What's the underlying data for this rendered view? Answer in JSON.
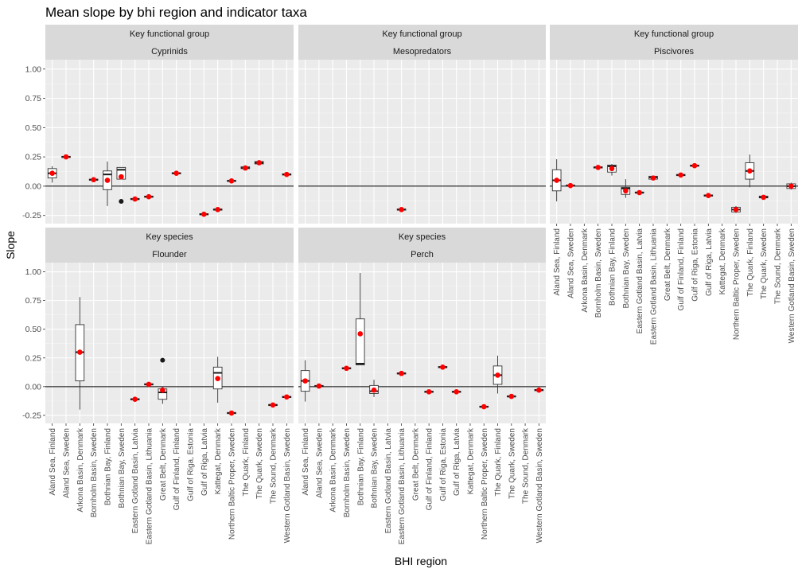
{
  "chart_data": {
    "type": "boxplot",
    "title": "Mean slope by bhi region and indicator taxa",
    "xlabel": "BHI region",
    "ylabel": "Slope",
    "ylim": [
      -0.32,
      1.08
    ],
    "yticks": [
      -0.25,
      0,
      0.25,
      0.5,
      0.75,
      1
    ],
    "ytick_labels": [
      "-0.25",
      "0.00",
      "0.25",
      "0.50",
      "0.75",
      "1.00"
    ],
    "hline": 0,
    "grid": true,
    "mean_marker_color": "#ff0000",
    "panel_background": "#ebebeb",
    "strip_background": "#d9d9d9",
    "categories": [
      "Aland Sea, Finland",
      "Aland Sea, Sweden",
      "Arkona Basin, Denmark",
      "Bornholm Basin, Sweden",
      "Bothnian Bay, Finland",
      "Bothnian Bay, Sweden",
      "Eastern Gotland Basin, Latvia",
      "Eastern Gotland Basin, Lithuania",
      "Great Belt, Denmark",
      "Gulf of Finland, Finland",
      "Gulf of Riga, Estonia",
      "Gulf of Riga, Latvia",
      "Kattegat, Denmark",
      "Northern Baltic Proper, Sweden",
      "The Quark, Finland",
      "The Quark, Sweden",
      "The Sound, Denmark",
      "Western Gotland Basin, Sweden"
    ],
    "panels": [
      {
        "group": "Key functional group",
        "taxon": "Cyprinids",
        "boxes": [
          {
            "cat": 0,
            "q1": 0.07,
            "med": 0.11,
            "q3": 0.15,
            "lo": 0.03,
            "hi": 0.17,
            "mean": 0.11
          },
          {
            "cat": 1,
            "q1": 0.245,
            "med": 0.25,
            "q3": 0.255,
            "lo": 0.245,
            "hi": 0.255,
            "mean": 0.25
          },
          {
            "cat": 3,
            "q1": 0.05,
            "med": 0.055,
            "q3": 0.06,
            "lo": 0.05,
            "hi": 0.06,
            "mean": 0.055
          },
          {
            "cat": 4,
            "q1": -0.03,
            "med": 0.1,
            "q3": 0.13,
            "lo": -0.17,
            "hi": 0.21,
            "mean": 0.05
          },
          {
            "cat": 5,
            "q1": 0.06,
            "med": 0.14,
            "q3": 0.16,
            "lo": 0.06,
            "hi": 0.16,
            "mean": 0.08,
            "outliers": [
              -0.13
            ]
          },
          {
            "cat": 6,
            "q1": -0.115,
            "med": -0.11,
            "q3": -0.105,
            "lo": -0.115,
            "hi": -0.105,
            "mean": -0.11
          },
          {
            "cat": 7,
            "q1": -0.095,
            "med": -0.09,
            "q3": -0.085,
            "lo": -0.095,
            "hi": -0.085,
            "mean": -0.09
          },
          {
            "cat": 9,
            "q1": 0.105,
            "med": 0.11,
            "q3": 0.115,
            "lo": 0.105,
            "hi": 0.115,
            "mean": 0.11
          },
          {
            "cat": 11,
            "q1": -0.245,
            "med": -0.24,
            "q3": -0.235,
            "lo": -0.245,
            "hi": -0.235,
            "mean": -0.24
          },
          {
            "cat": 12,
            "q1": -0.205,
            "med": -0.2,
            "q3": -0.195,
            "lo": -0.205,
            "hi": -0.195,
            "mean": -0.2
          },
          {
            "cat": 13,
            "q1": 0.04,
            "med": 0.045,
            "q3": 0.05,
            "lo": 0.04,
            "hi": 0.05,
            "mean": 0.045
          },
          {
            "cat": 14,
            "q1": 0.15,
            "med": 0.155,
            "q3": 0.165,
            "lo": 0.15,
            "hi": 0.165,
            "mean": 0.155
          },
          {
            "cat": 15,
            "q1": 0.19,
            "med": 0.2,
            "q3": 0.21,
            "lo": 0.18,
            "hi": 0.22,
            "mean": 0.2
          },
          {
            "cat": 17,
            "q1": 0.095,
            "med": 0.1,
            "q3": 0.105,
            "lo": 0.095,
            "hi": 0.105,
            "mean": 0.1
          }
        ]
      },
      {
        "group": "Key functional group",
        "taxon": "Mesopredators",
        "boxes": [
          {
            "cat": 7,
            "q1": -0.205,
            "med": -0.2,
            "q3": -0.195,
            "lo": -0.205,
            "hi": -0.195,
            "mean": -0.2
          }
        ]
      },
      {
        "group": "Key functional group",
        "taxon": "Piscivores",
        "boxes": [
          {
            "cat": 0,
            "q1": -0.04,
            "med": 0.05,
            "q3": 0.14,
            "lo": -0.13,
            "hi": 0.23,
            "mean": 0.05
          },
          {
            "cat": 1,
            "q1": 0.0,
            "med": 0.005,
            "q3": 0.01,
            "lo": 0.0,
            "hi": 0.01,
            "mean": 0.005
          },
          {
            "cat": 3,
            "q1": 0.155,
            "med": 0.16,
            "q3": 0.165,
            "lo": 0.155,
            "hi": 0.165,
            "mean": 0.16
          },
          {
            "cat": 4,
            "q1": 0.12,
            "med": 0.17,
            "q3": 0.18,
            "lo": 0.09,
            "hi": 0.19,
            "mean": 0.15
          },
          {
            "cat": 5,
            "q1": -0.07,
            "med": -0.02,
            "q3": -0.01,
            "lo": -0.1,
            "hi": 0.06,
            "mean": -0.04
          },
          {
            "cat": 6,
            "q1": -0.06,
            "med": -0.055,
            "q3": -0.05,
            "lo": -0.06,
            "hi": -0.05,
            "mean": -0.055
          },
          {
            "cat": 7,
            "q1": 0.06,
            "med": 0.075,
            "q3": 0.085,
            "lo": 0.05,
            "hi": 0.09,
            "mean": 0.07
          },
          {
            "cat": 9,
            "q1": 0.09,
            "med": 0.095,
            "q3": 0.1,
            "lo": 0.09,
            "hi": 0.1,
            "mean": 0.095
          },
          {
            "cat": 10,
            "q1": 0.17,
            "med": 0.175,
            "q3": 0.18,
            "lo": 0.17,
            "hi": 0.18,
            "mean": 0.175
          },
          {
            "cat": 11,
            "q1": -0.085,
            "med": -0.08,
            "q3": -0.075,
            "lo": -0.085,
            "hi": -0.075,
            "mean": -0.08
          },
          {
            "cat": 13,
            "q1": -0.22,
            "med": -0.2,
            "q3": -0.18,
            "lo": -0.23,
            "hi": -0.17,
            "mean": -0.2
          },
          {
            "cat": 14,
            "q1": 0.06,
            "med": 0.13,
            "q3": 0.2,
            "lo": -0.01,
            "hi": 0.27,
            "mean": 0.13
          },
          {
            "cat": 15,
            "q1": -0.1,
            "med": -0.095,
            "q3": -0.085,
            "lo": -0.1,
            "hi": -0.085,
            "mean": -0.095
          },
          {
            "cat": 17,
            "q1": -0.02,
            "med": 0.0,
            "q3": 0.02,
            "lo": -0.03,
            "hi": 0.03,
            "mean": 0.0
          }
        ]
      },
      {
        "group": "Key species",
        "taxon": "Flounder",
        "boxes": [
          {
            "cat": 2,
            "q1": 0.05,
            "med": 0.3,
            "q3": 0.54,
            "lo": -0.2,
            "hi": 0.78,
            "mean": 0.3
          },
          {
            "cat": 6,
            "q1": -0.115,
            "med": -0.11,
            "q3": -0.105,
            "lo": -0.115,
            "hi": -0.105,
            "mean": -0.11
          },
          {
            "cat": 7,
            "q1": 0.015,
            "med": 0.02,
            "q3": 0.025,
            "lo": 0.015,
            "hi": 0.025,
            "mean": 0.02
          },
          {
            "cat": 8,
            "q1": -0.11,
            "med": -0.05,
            "q3": -0.02,
            "lo": -0.15,
            "hi": 0.0,
            "mean": -0.03,
            "outliers": [
              0.23
            ]
          },
          {
            "cat": 12,
            "q1": -0.02,
            "med": 0.12,
            "q3": 0.17,
            "lo": -0.14,
            "hi": 0.26,
            "mean": 0.07
          },
          {
            "cat": 13,
            "q1": -0.235,
            "med": -0.23,
            "q3": -0.225,
            "lo": -0.235,
            "hi": -0.225,
            "mean": -0.23
          },
          {
            "cat": 16,
            "q1": -0.165,
            "med": -0.16,
            "q3": -0.155,
            "lo": -0.165,
            "hi": -0.155,
            "mean": -0.16
          },
          {
            "cat": 17,
            "q1": -0.095,
            "med": -0.09,
            "q3": -0.085,
            "lo": -0.095,
            "hi": -0.085,
            "mean": -0.09
          }
        ]
      },
      {
        "group": "Key species",
        "taxon": "Perch",
        "boxes": [
          {
            "cat": 0,
            "q1": -0.04,
            "med": 0.05,
            "q3": 0.14,
            "lo": -0.13,
            "hi": 0.23,
            "mean": 0.05
          },
          {
            "cat": 1,
            "q1": 0.0,
            "med": 0.005,
            "q3": 0.01,
            "lo": 0.0,
            "hi": 0.01,
            "mean": 0.005
          },
          {
            "cat": 3,
            "q1": 0.155,
            "med": 0.16,
            "q3": 0.165,
            "lo": 0.155,
            "hi": 0.165,
            "mean": 0.16
          },
          {
            "cat": 4,
            "q1": 0.19,
            "med": 0.2,
            "q3": 0.59,
            "lo": 0.19,
            "hi": 0.99,
            "mean": 0.46
          },
          {
            "cat": 5,
            "q1": -0.06,
            "med": -0.04,
            "q3": 0.01,
            "lo": -0.09,
            "hi": 0.06,
            "mean": -0.03
          },
          {
            "cat": 7,
            "q1": 0.11,
            "med": 0.115,
            "q3": 0.12,
            "lo": 0.11,
            "hi": 0.12,
            "mean": 0.115
          },
          {
            "cat": 9,
            "q1": -0.05,
            "med": -0.045,
            "q3": -0.04,
            "lo": -0.05,
            "hi": -0.04,
            "mean": -0.045
          },
          {
            "cat": 10,
            "q1": 0.165,
            "med": 0.17,
            "q3": 0.175,
            "lo": 0.165,
            "hi": 0.175,
            "mean": 0.17
          },
          {
            "cat": 11,
            "q1": -0.05,
            "med": -0.045,
            "q3": -0.04,
            "lo": -0.05,
            "hi": -0.04,
            "mean": -0.045
          },
          {
            "cat": 13,
            "q1": -0.18,
            "med": -0.175,
            "q3": -0.17,
            "lo": -0.18,
            "hi": -0.17,
            "mean": -0.175
          },
          {
            "cat": 14,
            "q1": 0.02,
            "med": 0.1,
            "q3": 0.18,
            "lo": -0.06,
            "hi": 0.27,
            "mean": 0.1
          },
          {
            "cat": 15,
            "q1": -0.09,
            "med": -0.085,
            "q3": -0.08,
            "lo": -0.09,
            "hi": -0.08,
            "mean": -0.085
          },
          {
            "cat": 17,
            "q1": -0.035,
            "med": -0.03,
            "q3": -0.025,
            "lo": -0.035,
            "hi": -0.025,
            "mean": -0.03
          }
        ]
      }
    ]
  }
}
